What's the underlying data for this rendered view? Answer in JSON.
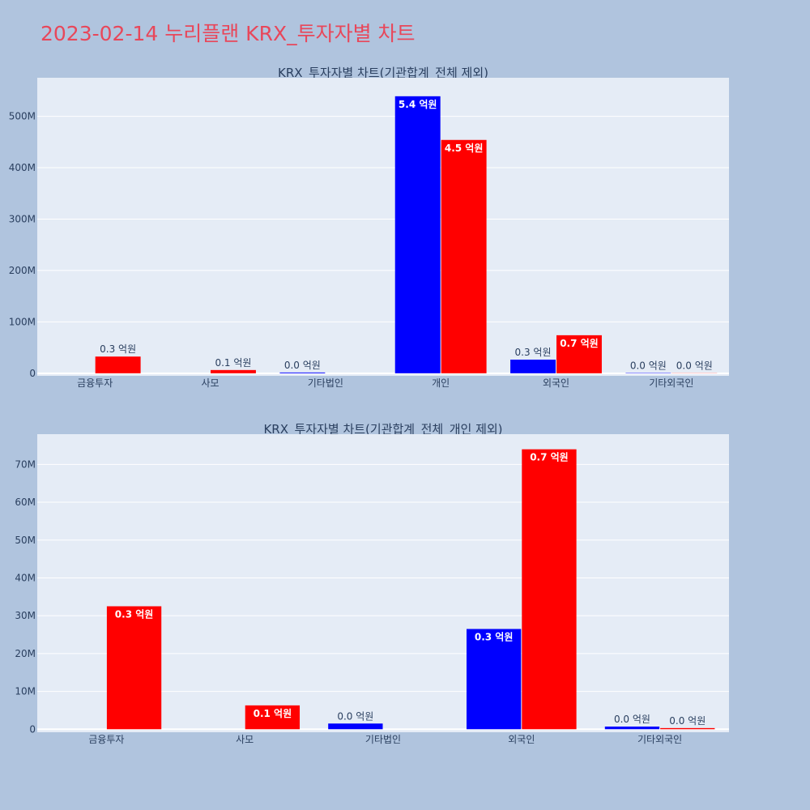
{
  "page": {
    "title": "2023-02-14 누리플랜 KRX_투자자별 차트"
  },
  "colors": {
    "background": "#b0c4de",
    "plot_background": "#e5ecf6",
    "title": "#e8475a",
    "buy": "#0000ff",
    "sell": "#ff0000",
    "axis_text": "#2a3f5f"
  },
  "chart_data": [
    {
      "type": "bar",
      "title": "KRX_투자자별 차트(기관합계_전체 제외)",
      "categories": [
        "금융투자",
        "사모",
        "기타법인",
        "개인",
        "외국인",
        "기타외국인"
      ],
      "ylim": [
        -5000000,
        575000000
      ],
      "yticks": [
        0,
        100000000,
        200000000,
        300000000,
        400000000,
        500000000
      ],
      "ytick_labels": [
        "0",
        "100M",
        "200M",
        "300M",
        "400M",
        "500M"
      ],
      "grid": true,
      "series": [
        {
          "color": "#0000ff",
          "values": [
            0,
            0,
            1500000,
            539000000,
            26500000,
            700000
          ],
          "labels": [
            "",
            "",
            "0.0 억원",
            "5.4 억원",
            "0.3 억원",
            "0.0 억원"
          ]
        },
        {
          "color": "#ff0000",
          "values": [
            32500000,
            6300000,
            0,
            454000000,
            74000000,
            300000
          ],
          "labels": [
            "0.3 억원",
            "0.1 억원",
            "",
            "4.5 억원",
            "0.7 억원",
            "0.0 억원"
          ]
        }
      ]
    },
    {
      "type": "bar",
      "title": "KRX_투자자별 차트(기관합계_전체_개인 제외)",
      "categories": [
        "금융투자",
        "사모",
        "기타법인",
        "외국인",
        "기타외국인"
      ],
      "ylim": [
        -800000,
        78000000
      ],
      "yticks": [
        0,
        10000000,
        20000000,
        30000000,
        40000000,
        50000000,
        60000000,
        70000000
      ],
      "ytick_labels": [
        "0",
        "10M",
        "20M",
        "30M",
        "40M",
        "50M",
        "60M",
        "70M"
      ],
      "grid": true,
      "series": [
        {
          "color": "#0000ff",
          "values": [
            0,
            0,
            1500000,
            26500000,
            700000
          ],
          "labels": [
            "",
            "",
            "0.0 억원",
            "0.3 억원",
            "0.0 억원"
          ]
        },
        {
          "color": "#ff0000",
          "values": [
            32500000,
            6300000,
            0,
            74000000,
            300000
          ],
          "labels": [
            "0.3 억원",
            "0.1 억원",
            "",
            "0.7 억원",
            "0.0 억원"
          ]
        }
      ]
    }
  ]
}
